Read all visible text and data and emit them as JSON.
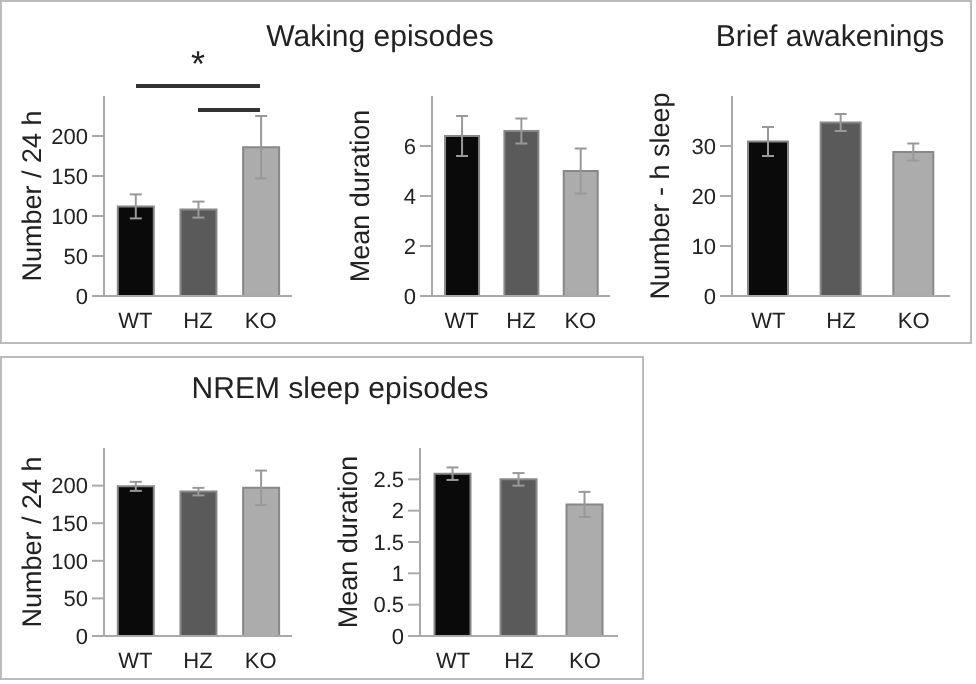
{
  "chart_data": [
    {
      "type": "bar",
      "title": "Waking episodes",
      "ylabel": "Number / 24 h",
      "categories": [
        "WT",
        "HZ",
        "KO"
      ],
      "values": [
        112,
        108,
        186
      ],
      "errors": [
        15,
        10,
        39
      ],
      "colors": [
        "#0a0a0a",
        "#5a5a5a",
        "#acacac"
      ],
      "ylim": [
        0,
        250
      ],
      "yticks": [
        0,
        50,
        100,
        150,
        200
      ],
      "annotations": [
        "*"
      ]
    },
    {
      "type": "bar",
      "ylabel": "Mean duration",
      "categories": [
        "WT",
        "HZ",
        "KO"
      ],
      "values": [
        6.4,
        6.6,
        5.0
      ],
      "errors": [
        0.8,
        0.5,
        0.9
      ],
      "colors": [
        "#0a0a0a",
        "#5a5a5a",
        "#acacac"
      ],
      "ylim": [
        0,
        8
      ],
      "yticks": [
        0,
        2,
        4,
        6
      ]
    },
    {
      "type": "bar",
      "title": "Brief awakenings",
      "ylabel": "Number - h sleep",
      "categories": [
        "WT",
        "HZ",
        "KO"
      ],
      "values": [
        30.9,
        34.7,
        28.8
      ],
      "errors": [
        2.9,
        1.7,
        1.7
      ],
      "colors": [
        "#0a0a0a",
        "#5a5a5a",
        "#acacac"
      ],
      "ylim": [
        0,
        40
      ],
      "yticks": [
        0,
        10,
        20,
        30
      ]
    },
    {
      "type": "bar",
      "title": "NREM sleep episodes",
      "ylabel": "Number / 24 h",
      "categories": [
        "WT",
        "HZ",
        "KO"
      ],
      "values": [
        199,
        192,
        197
      ],
      "errors": [
        6,
        5,
        23
      ],
      "colors": [
        "#0a0a0a",
        "#5a5a5a",
        "#acacac"
      ],
      "ylim": [
        0,
        250
      ],
      "yticks": [
        0,
        50,
        100,
        150,
        200
      ]
    },
    {
      "type": "bar",
      "ylabel": "Mean duration",
      "categories": [
        "WT",
        "HZ",
        "KO"
      ],
      "values": [
        2.59,
        2.5,
        2.1
      ],
      "errors": [
        0.1,
        0.1,
        0.2
      ],
      "colors": [
        "#0a0a0a",
        "#5a5a5a",
        "#acacac"
      ],
      "ylim": [
        0,
        3
      ],
      "yticks": [
        0,
        0.5,
        1,
        1.5,
        2,
        2.5
      ]
    }
  ]
}
